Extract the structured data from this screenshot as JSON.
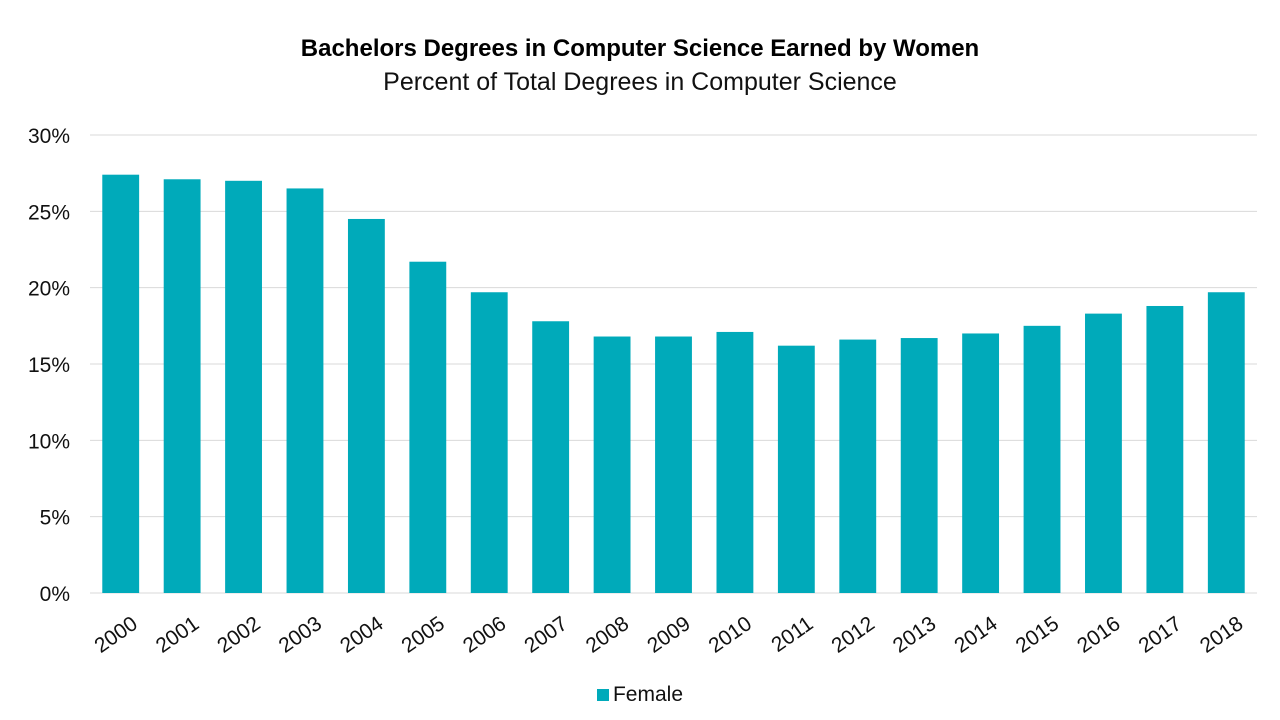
{
  "colors": {
    "bar": "#00aaba",
    "grid": "#d9d9d9"
  },
  "chart_data": {
    "type": "bar",
    "title": "Bachelors Degrees in Computer Science Earned by Women",
    "subtitle": "Percent of Total Degrees in Computer Science",
    "xlabel": "",
    "ylabel": "",
    "ylim": [
      0,
      30
    ],
    "yticks": [
      "0%",
      "5%",
      "10%",
      "15%",
      "20%",
      "25%",
      "30%"
    ],
    "grid": true,
    "legend_position": "bottom",
    "categories": [
      "2000",
      "2001",
      "2002",
      "2003",
      "2004",
      "2005",
      "2006",
      "2007",
      "2008",
      "2009",
      "2010",
      "2011",
      "2012",
      "2013",
      "2014",
      "2015",
      "2016",
      "2017",
      "2018"
    ],
    "series": [
      {
        "name": "Female",
        "values": [
          27.4,
          27.1,
          27.0,
          26.5,
          24.5,
          21.7,
          19.7,
          17.8,
          16.8,
          16.8,
          17.1,
          16.2,
          16.6,
          16.7,
          17.0,
          17.5,
          18.3,
          18.8,
          19.7
        ]
      }
    ]
  }
}
